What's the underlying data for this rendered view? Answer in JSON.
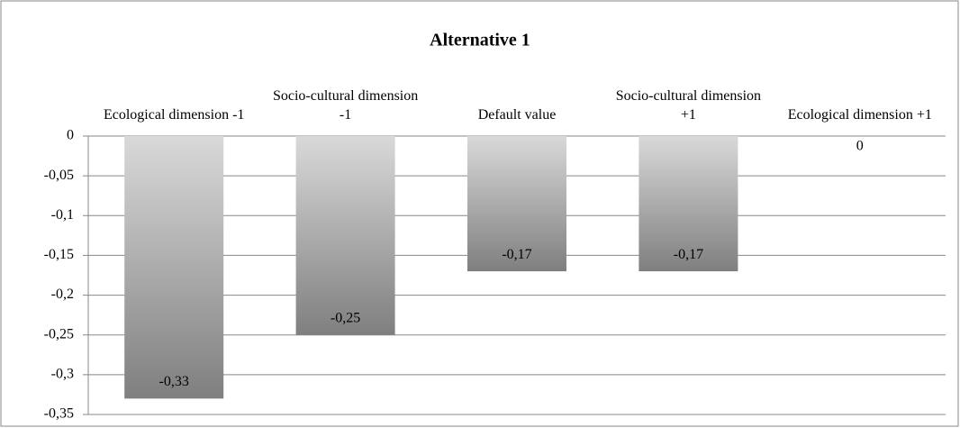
{
  "chart_data": {
    "type": "bar",
    "title": "Alternative 1",
    "categories": [
      "Ecological dimension -1",
      "Socio-cultural dimension -1",
      "Default value",
      "Socio-cultural dimension +1",
      "Ecological dimension +1"
    ],
    "values": [
      -0.33,
      -0.25,
      -0.17,
      -0.17,
      0
    ],
    "value_labels": [
      "-0,33",
      "-0,25",
      "-0,17",
      "-0,17",
      "0"
    ],
    "ylim": [
      -0.35,
      0
    ],
    "yticks": [
      0,
      {
        "value": -0.05,
        "label": "-0,05"
      },
      {
        "value": -0.1,
        "label": "-0,1"
      },
      {
        "value": -0.15,
        "label": "-0,15"
      },
      {
        "value": -0.2,
        "label": "-0,2"
      },
      {
        "value": -0.25,
        "label": "-0,25"
      },
      {
        "value": -0.3,
        "label": "-0,3"
      },
      {
        "value": -0.35,
        "label": "-0,35"
      }
    ],
    "grid": true
  }
}
